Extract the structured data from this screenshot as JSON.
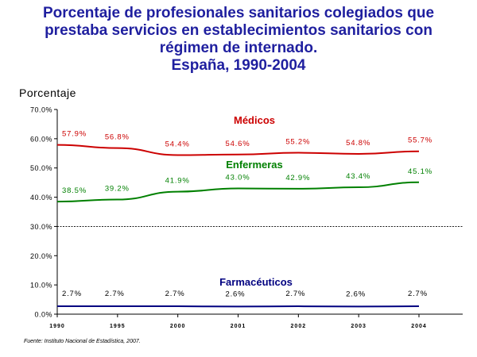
{
  "title": {
    "line1": "Porcentaje de profesionales sanitarios colegiados que",
    "line2": "prestaba servicios en establecimientos sanitarios con",
    "line3": "régimen de internado.",
    "line4": "España, 1990-2004"
  },
  "source": "Fuente: Instituto Nacional de Estadística, 2007.",
  "chart_data": {
    "type": "line",
    "title": "Porcentaje de profesionales sanitarios colegiados que prestaba servicios en establecimientos sanitarios con régimen de internado. España, 1990-2004",
    "ylabel": "Porcentaje",
    "xlabel": "",
    "x": [
      "1990",
      "1995",
      "2000",
      "2001",
      "2002",
      "2003",
      "2004"
    ],
    "ylim": [
      0,
      70
    ],
    "yticks": [
      0,
      10,
      20,
      30,
      40,
      50,
      60,
      70
    ],
    "ytick_labels": [
      "0.0%",
      "10.0%",
      "20.0%",
      "30.0%",
      "40.0%",
      "50.0%",
      "60.0%",
      "70.0%"
    ],
    "reference_line": 30,
    "grid": false,
    "series": [
      {
        "name": "Médicos",
        "color": "#cc0000",
        "values": [
          57.9,
          56.8,
          54.4,
          54.6,
          55.2,
          54.8,
          55.7
        ],
        "labels": [
          "57.9%",
          "56.8%",
          "54.4%",
          "54.6%",
          "55.2%",
          "54.8%",
          "55.7%"
        ]
      },
      {
        "name": "Enfermeras",
        "color": "#008000",
        "values": [
          38.5,
          39.2,
          41.9,
          43.0,
          42.9,
          43.4,
          45.1
        ],
        "labels": [
          "38.5%",
          "39.2%",
          "41.9%",
          "43.0%",
          "42.9%",
          "43.4%",
          "45.1%"
        ]
      },
      {
        "name": "Farmacéuticos",
        "color": "#000080",
        "values": [
          2.7,
          2.7,
          2.7,
          2.6,
          2.7,
          2.6,
          2.7
        ],
        "labels": [
          "2.7%",
          "2.7%",
          "2.7%",
          "2.6%",
          "2.7%",
          "2.6%",
          "2.7%"
        ]
      }
    ]
  }
}
